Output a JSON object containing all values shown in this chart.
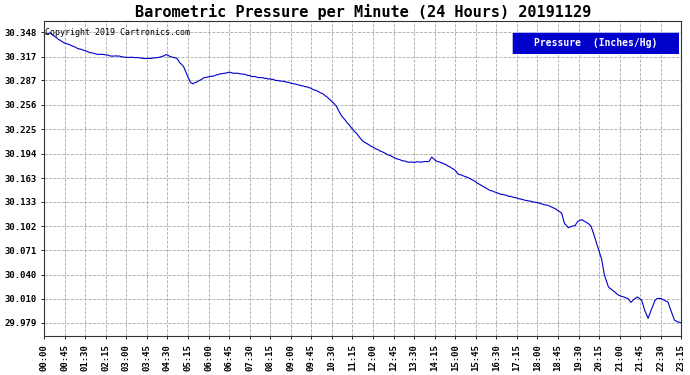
{
  "title": "Barometric Pressure per Minute (24 Hours) 20191129",
  "copyright": "Copyright 2019 Cartronics.com",
  "legend_label": "Pressure  (Inches/Hg)",
  "legend_bg": "#0000cc",
  "legend_fg": "#ffffff",
  "line_color": "#0000cc",
  "line_width": 0.8,
  "background_color": "#ffffff",
  "plot_bg": "#ffffff",
  "grid_color": "#aaaaaa",
  "grid_style": "--",
  "yticks": [
    29.979,
    30.01,
    30.04,
    30.071,
    30.102,
    30.133,
    30.163,
    30.194,
    30.225,
    30.256,
    30.287,
    30.317,
    30.348
  ],
  "ylim": [
    29.962,
    30.362
  ],
  "xtick_labels": [
    "00:00",
    "00:45",
    "01:30",
    "02:15",
    "03:00",
    "03:45",
    "04:30",
    "05:15",
    "06:00",
    "06:45",
    "07:30",
    "08:15",
    "09:00",
    "09:45",
    "10:30",
    "11:15",
    "12:00",
    "12:45",
    "13:30",
    "14:15",
    "15:00",
    "15:45",
    "16:30",
    "17:15",
    "18:00",
    "18:45",
    "19:30",
    "20:15",
    "21:00",
    "21:45",
    "22:30",
    "23:15"
  ],
  "title_fontsize": 11,
  "tick_fontsize": 6.5,
  "copyright_fontsize": 6.0,
  "legend_fontsize": 7.0,
  "key_times": [
    0,
    0.25,
    0.5,
    0.75,
    1.0,
    1.25,
    1.5,
    1.75,
    2.0,
    2.25,
    2.5,
    2.75,
    3.0,
    3.25,
    3.5,
    3.75,
    4.0,
    4.25,
    4.5,
    4.6,
    4.75,
    5.0,
    5.1,
    5.25,
    5.5,
    5.6,
    5.75,
    6.0,
    6.25,
    6.5,
    6.75,
    7.0,
    7.25,
    7.5,
    7.75,
    8.0,
    8.25,
    8.5,
    8.75,
    9.0,
    9.25,
    9.5,
    9.75,
    10.0,
    10.25,
    10.5,
    10.75,
    11.0,
    11.1,
    11.25,
    11.5,
    11.75,
    12.0,
    12.25,
    12.5,
    12.75,
    13.0,
    13.25,
    13.5,
    13.75,
    14.0,
    14.25,
    14.5,
    14.6,
    14.75,
    15.0,
    15.25,
    15.5,
    15.6,
    15.75,
    16.0,
    16.25,
    16.5,
    16.75,
    17.0,
    17.25,
    17.5,
    17.75,
    18.0,
    18.25,
    18.5,
    18.75,
    19.0,
    19.25,
    19.5,
    19.6,
    19.75,
    20.0,
    20.1,
    20.25,
    20.5,
    20.6,
    21.0,
    21.1,
    21.25,
    21.5,
    21.6,
    21.75,
    22.0,
    22.1,
    22.25,
    22.35,
    22.5,
    22.6,
    22.75,
    23.0,
    23.1,
    23.25,
    23.5,
    23.75,
    24.0
  ],
  "key_vals": [
    30.345,
    30.347,
    30.34,
    30.335,
    30.332,
    30.328,
    30.325,
    30.322,
    30.32,
    30.32,
    30.318,
    30.318,
    30.317,
    30.316,
    30.316,
    30.315,
    30.315,
    30.316,
    30.318,
    30.32,
    30.317,
    30.315,
    30.31,
    30.305,
    30.285,
    30.283,
    30.285,
    30.29,
    30.292,
    30.294,
    30.296,
    30.297,
    30.296,
    30.295,
    30.293,
    30.291,
    30.29,
    30.289,
    30.287,
    30.286,
    30.284,
    30.282,
    30.28,
    30.278,
    30.274,
    30.27,
    30.263,
    30.255,
    30.248,
    30.24,
    30.23,
    30.22,
    30.21,
    30.205,
    30.2,
    30.196,
    30.192,
    30.188,
    30.185,
    30.183,
    30.183,
    30.184,
    30.184,
    30.19,
    30.185,
    30.182,
    30.178,
    30.172,
    30.168,
    30.166,
    30.163,
    30.158,
    30.153,
    30.148,
    30.145,
    30.142,
    30.14,
    30.138,
    30.136,
    30.134,
    30.132,
    30.13,
    30.128,
    30.124,
    30.118,
    30.105,
    30.1,
    30.103,
    30.108,
    30.11,
    30.105,
    30.102,
    30.06,
    30.04,
    30.025,
    30.018,
    30.015,
    30.013,
    30.01,
    30.005,
    30.01,
    30.012,
    30.008,
    29.997,
    29.985,
    30.007,
    30.01,
    30.01,
    30.005,
    29.982,
    29.979
  ]
}
